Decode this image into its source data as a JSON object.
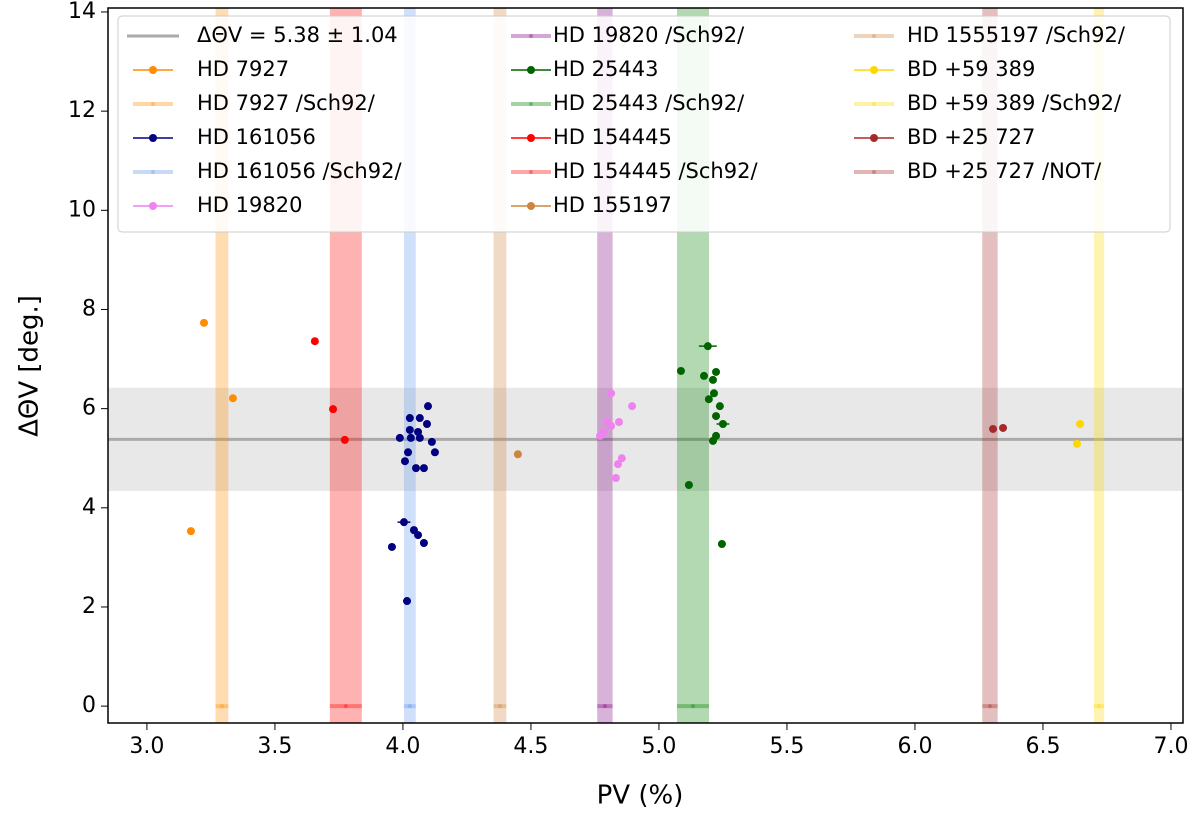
{
  "chart_data": {
    "type": "scatter",
    "xlabel": "PV (%)",
    "ylabel": "ΔΘV [deg.]",
    "xlim": [
      2.848,
      7.047
    ],
    "ylim": [
      -0.34,
      14.08
    ],
    "xticks": [
      {
        "value": 3,
        "label": "3.0"
      },
      {
        "value": 3.5,
        "label": "3.5"
      },
      {
        "value": 4,
        "label": "4.0"
      },
      {
        "value": 4.5,
        "label": "4.5"
      },
      {
        "value": 5,
        "label": "5.0"
      },
      {
        "value": 5.5,
        "label": "5.5"
      },
      {
        "value": 6,
        "label": "6.0"
      },
      {
        "value": 6.5,
        "label": "6.5"
      },
      {
        "value": 7,
        "label": "7.0"
      }
    ],
    "yticks": [
      0,
      2,
      4,
      6,
      8,
      10,
      12,
      14
    ],
    "legend": "top",
    "mean": {
      "label": "ΔΘV = 5.38 ± 1.04",
      "value": 5.38,
      "std": 1.04,
      "color": "#aaaaaa"
    },
    "series": [
      {
        "name": "HD 7927",
        "color": "#ff8c00",
        "x": [
          3.223,
          3.336,
          3.172
        ],
        "y": [
          7.73,
          6.21,
          3.53
        ],
        "xerr": [
          0.01,
          0.006,
          0.012
        ]
      },
      {
        "name": "HD 7927 /Sch92/",
        "color": "#ff8c00",
        "band": true,
        "x": [
          3.293
        ],
        "y": [
          0
        ],
        "xerr": [
          0.025
        ]
      },
      {
        "name": "HD 161056",
        "color": "#000080",
        "x": [
          4.098,
          4.027,
          4.066,
          4.027,
          4.059,
          4.094,
          3.988,
          4.031,
          4.066,
          4.113,
          4.02,
          4.125,
          4.008,
          4.051,
          4.082,
          4.004,
          4.043,
          4.059,
          4.082,
          3.957,
          4.016
        ],
        "y": [
          6.05,
          5.81,
          5.81,
          5.57,
          5.53,
          5.69,
          5.41,
          5.41,
          5.41,
          5.33,
          5.12,
          5.12,
          4.94,
          4.8,
          4.8,
          3.71,
          3.55,
          3.45,
          3.29,
          3.21,
          2.12
        ],
        "xerr": [
          0.006,
          0.006,
          0.006,
          0.006,
          0.006,
          0.006,
          0.006,
          0.006,
          0.006,
          0.006,
          0.006,
          0.006,
          0.006,
          0.006,
          0.006,
          0.025,
          0.015,
          0.01,
          0.015,
          0.015,
          0.015
        ]
      },
      {
        "name": "HD 161056 /Sch92/",
        "color": "#6495ed",
        "band": true,
        "x": [
          4.027
        ],
        "y": [
          0
        ],
        "xerr": [
          0.023
        ]
      },
      {
        "name": "HD 19820",
        "color": "#ee82ee",
        "x": [
          4.813,
          4.895,
          4.797,
          4.813,
          4.844,
          4.785,
          4.77,
          4.855,
          4.84,
          4.832
        ],
        "y": [
          6.31,
          6.05,
          5.73,
          5.65,
          5.73,
          5.53,
          5.45,
          5.0,
          4.88,
          4.6
        ],
        "xerr": [
          0.005,
          0.005,
          0.005,
          0.005,
          0.005,
          0.005,
          0.005,
          0.005,
          0.005,
          0.005
        ]
      },
      {
        "name": "HD 19820 /Sch92/",
        "color": "#800080",
        "band": true,
        "x": [
          4.789
        ],
        "y": [
          0
        ],
        "xerr": [
          0.03
        ]
      },
      {
        "name": "HD 25443",
        "color": "#006400",
        "x": [
          5.086,
          5.191,
          5.176,
          5.223,
          5.211,
          5.215,
          5.195,
          5.238,
          5.223,
          5.25,
          5.223,
          5.211,
          5.117,
          5.246
        ],
        "y": [
          6.76,
          7.26,
          6.66,
          6.74,
          6.58,
          6.31,
          6.19,
          6.05,
          5.85,
          5.69,
          5.45,
          5.35,
          4.46,
          3.27
        ],
        "xerr": [
          0.006,
          0.035,
          0.006,
          0.006,
          0.006,
          0.006,
          0.006,
          0.006,
          0.006,
          0.025,
          0.006,
          0.015,
          0.015,
          0.015
        ]
      },
      {
        "name": "HD 25443 /Sch92/",
        "color": "#008000",
        "band": true,
        "x": [
          5.133
        ],
        "y": [
          0
        ],
        "xerr": [
          0.0625
        ]
      },
      {
        "name": "HD 154445",
        "color": "#ff0000",
        "x": [
          3.656,
          3.727,
          3.773
        ],
        "y": [
          7.36,
          5.99,
          5.37
        ],
        "xerr": [
          0.005,
          0.005,
          0.005
        ]
      },
      {
        "name": "HD 154445 /Sch92/",
        "color": "#ff0000",
        "band": true,
        "x": [
          3.777
        ],
        "y": [
          0
        ],
        "xerr": [
          0.0625
        ]
      },
      {
        "name": "HD 155197",
        "color": "#cd853f",
        "x": [
          4.449
        ],
        "y": [
          5.08
        ],
        "xerr": [
          0.015
        ]
      },
      {
        "name": "HD 1555197 /Sch92/",
        "color": "#cd853f",
        "band": true,
        "x": [
          4.379
        ],
        "y": [
          0
        ],
        "xerr": [
          0.025
        ]
      },
      {
        "name": "BD +59 389",
        "color": "#ffd700",
        "x": [
          6.645,
          6.633
        ],
        "y": [
          5.69,
          5.29
        ],
        "xerr": [
          0.005,
          0.005
        ]
      },
      {
        "name": "BD +59 389 /Sch92/",
        "color": "#ffd700",
        "band": true,
        "x": [
          6.719
        ],
        "y": [
          0
        ],
        "xerr": [
          0.02
        ]
      },
      {
        "name": "BD +25 727",
        "color": "#a52a2a",
        "x": [
          6.305,
          6.344
        ],
        "y": [
          5.59,
          5.61
        ],
        "xerr": [
          0.01,
          0.01
        ]
      },
      {
        "name": "BD +25 727 /NOT/",
        "color": "#a52a2a",
        "band": true,
        "x": [
          6.293
        ],
        "y": [
          0
        ],
        "xerr": [
          0.03
        ]
      }
    ]
  }
}
